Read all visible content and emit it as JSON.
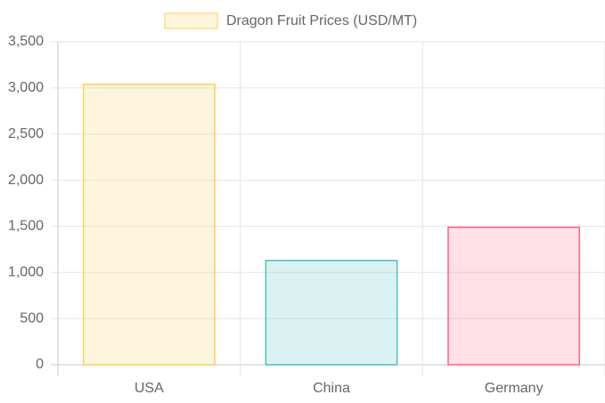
{
  "chart_data": {
    "type": "bar",
    "categories": [
      "USA",
      "China",
      "Germany"
    ],
    "series": [
      {
        "name": "Dragon Fruit Prices (USD/MT)",
        "values": [
          3040,
          1130,
          1490
        ],
        "colors": [
          "#ffce56",
          "#4bc0c0",
          "#ff6384"
        ]
      }
    ],
    "ylim": [
      0,
      3500
    ],
    "yticks": [
      0,
      500,
      {
        "value": 1000,
        "label": "1,000"
      },
      {
        "value": 1500,
        "label": "1,500"
      },
      {
        "value": 2000,
        "label": "2,000"
      },
      {
        "value": 2500,
        "label": "2,500"
      },
      {
        "value": 3000,
        "label": "3,000"
      },
      {
        "value": 3500,
        "label": "3,500"
      }
    ],
    "grid": true
  }
}
